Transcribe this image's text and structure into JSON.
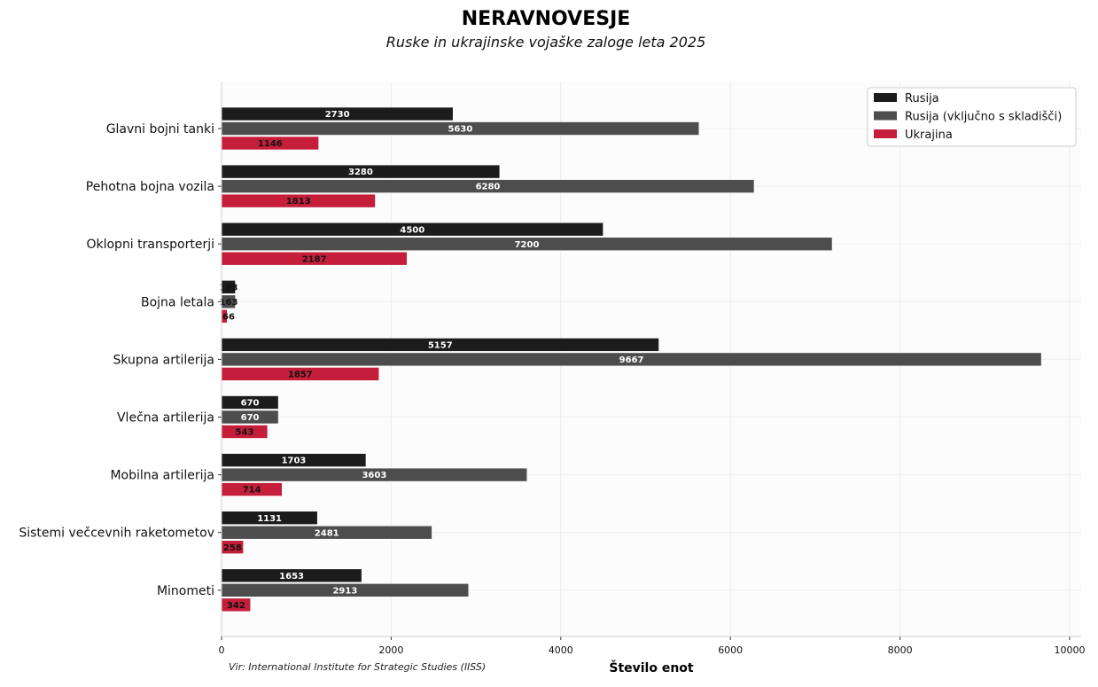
{
  "title": "NERAVNOVESJE",
  "subtitle": "Ruske in ukrajinske vojaške zaloge leta 2025",
  "source": "Vir: International Institute for Strategic Studies (IISS)",
  "colors": {
    "rusija": "#1c1c1c",
    "rusija_skladisca": "#4d4d4d",
    "ukrajina": "#c41e3a"
  },
  "chart_data": {
    "type": "bar",
    "orientation": "horizontal",
    "title": "NERAVNOVESJE",
    "subtitle": "Ruske in ukrajinske vojaške zaloge leta 2025",
    "xlabel": "Število enot",
    "ylabel": "",
    "xlim": [
      0,
      10000
    ],
    "xticks": [
      "0",
      "2000",
      "4000",
      "6000",
      "8000",
      "10000"
    ],
    "legend_position": "top-right",
    "grid": true,
    "categories": [
      "Glavni bojni tanki",
      "Pehotna bojna vozila",
      "Oklopni transporterji",
      "Bojna letala",
      "Skupna artilerija",
      "Vlečna artilerija",
      "Mobilna artilerija",
      "Sistemi večcevnih raketometov",
      "Minometi"
    ],
    "series": [
      {
        "name": "Rusija",
        "values": [
          2730,
          3280,
          4500,
          163,
          5157,
          670,
          1703,
          1131,
          1653
        ]
      },
      {
        "name": "Rusija (vključno s skladišči)",
        "values": [
          5630,
          6280,
          7200,
          163,
          9667,
          670,
          3603,
          2481,
          2913
        ]
      },
      {
        "name": "Ukrajina",
        "values": [
          1146,
          1813,
          2187,
          66,
          1857,
          543,
          714,
          258,
          342
        ]
      }
    ]
  }
}
